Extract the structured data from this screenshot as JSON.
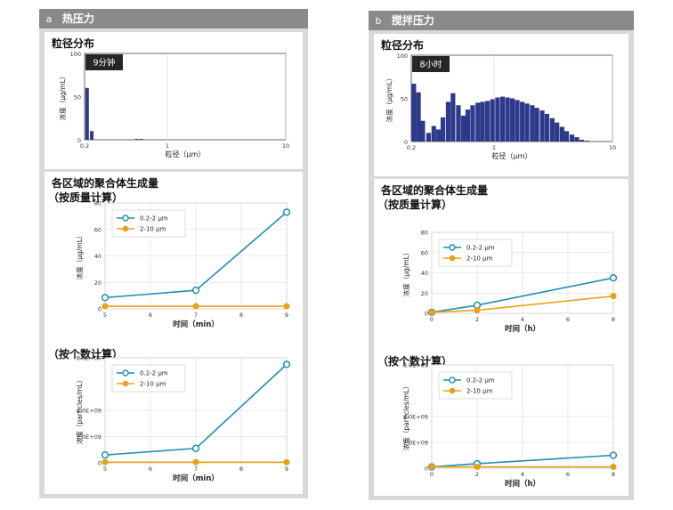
{
  "panels": [
    {
      "letter": "a",
      "title": "热压力",
      "dist": {
        "title": "粒径分布",
        "badge": "9分钟",
        "ylabel": "浓度（μg/mL）",
        "xlabel": "粒径（μm）",
        "yticks": [
          "100",
          "50",
          "0"
        ],
        "xticks": [
          {
            "v": 0.2,
            "label": "0.2"
          },
          {
            "v": 1,
            "label": "1"
          },
          {
            "v": 10,
            "label": "10"
          }
        ]
      },
      "agg": {
        "title": "各区域的聚合体生成量",
        "mass_label": "（按质量计算）",
        "count_label": "（按个数计算）"
      }
    },
    {
      "letter": "b",
      "title": "搅拌压力",
      "dist": {
        "title": "粒径分布",
        "badge": "8小时",
        "ylabel": "浓度（μg/mL）",
        "xlabel": "粒径（μm）",
        "yticks": [
          "100",
          "50",
          "0"
        ],
        "xticks": [
          {
            "v": 0.2,
            "label": "0.2"
          },
          {
            "v": 1,
            "label": "1"
          },
          {
            "v": 10,
            "label": "10"
          }
        ]
      },
      "agg": {
        "title": "各区域的聚合体生成量",
        "mass_label": "（按质量计算）",
        "count_label": "（按个数计算）"
      }
    }
  ],
  "colors": {
    "bar": "#2d3a8c",
    "s1": "#1f8fb0",
    "s2": "#e8a21a",
    "grid": "#d8d8d8"
  },
  "chart_data": [
    {
      "type": "bar",
      "panel": "a",
      "xscale": "log",
      "xlim": [
        0.2,
        10
      ],
      "ylim": [
        0,
        100
      ],
      "x": [
        0.21,
        0.23,
        0.55,
        0.6
      ],
      "values": [
        60,
        10,
        1,
        1
      ],
      "ylabel": "浓度（μg/mL）",
      "xlabel": "粒径（μm）"
    },
    {
      "type": "line",
      "panel": "a",
      "xlim": [
        5,
        9
      ],
      "ylim": [
        0,
        80
      ],
      "xticks": [
        5,
        6,
        7,
        8,
        9
      ],
      "yticks": [
        "0",
        "20",
        "40",
        "60",
        "80"
      ],
      "xlabel": "时间（min）",
      "ylabel": "浓度（μg/mL）",
      "legend": "top-left",
      "series": [
        {
          "name": "0.2-2 µm",
          "x": [
            5,
            7,
            9
          ],
          "values": [
            8.5,
            14,
            73
          ]
        },
        {
          "name": "2-10 µm",
          "x": [
            5,
            7,
            9
          ],
          "values": [
            2,
            2,
            2
          ]
        }
      ]
    },
    {
      "type": "line",
      "panel": "a",
      "xlim": [
        5,
        9
      ],
      "ylim": [
        0,
        8000000000.0
      ],
      "xticks": [
        5,
        6,
        7,
        8,
        9
      ],
      "yticks": [
        "0",
        "2.0E+09",
        "4.0E+09",
        "8.0E+09"
      ],
      "ytick_values": [
        0,
        2000000000.0,
        4000000000.0,
        8000000000.0
      ],
      "xlabel": "时间（min）",
      "ylabel": "浓度（particles/mL）",
      "legend": "top-left",
      "series": [
        {
          "name": "0.2-2 µm",
          "x": [
            5,
            7,
            9
          ],
          "values": [
            600000000.0,
            1100000000.0,
            7500000000.0
          ]
        },
        {
          "name": "2-10 µm",
          "x": [
            5,
            7,
            9
          ],
          "values": [
            50000000.0,
            50000000.0,
            50000000.0
          ]
        }
      ]
    },
    {
      "type": "bar",
      "panel": "b",
      "xscale": "log",
      "xlim": [
        0.2,
        10
      ],
      "ylim": [
        0,
        100
      ],
      "x": [
        0.21,
        0.23,
        0.25,
        0.28,
        0.31,
        0.34,
        0.37,
        0.41,
        0.45,
        0.5,
        0.55,
        0.6,
        0.66,
        0.73,
        0.8,
        0.88,
        0.97,
        1.07,
        1.18,
        1.3,
        1.43,
        1.57,
        1.73,
        1.9,
        2.1,
        2.3,
        2.55,
        2.8,
        3.1,
        3.4,
        3.75,
        4.1,
        4.55,
        5.0,
        5.5,
        6.1
      ],
      "values": [
        67,
        57,
        24,
        10,
        18,
        14,
        28,
        46,
        56,
        42,
        30,
        37,
        42,
        45,
        46,
        47,
        49,
        51,
        52,
        51,
        50,
        48,
        46,
        44,
        42,
        39,
        36,
        32,
        27,
        22,
        17,
        12,
        8,
        5,
        2,
        1
      ],
      "ylabel": "浓度（μg/mL）",
      "xlabel": "粒径（μm）"
    },
    {
      "type": "line",
      "panel": "b",
      "xlim": [
        0,
        8
      ],
      "ylim": [
        0,
        80
      ],
      "xticks": [
        0,
        2,
        4,
        6,
        8
      ],
      "yticks": [
        "0",
        "20",
        "40",
        "60",
        "80"
      ],
      "xlabel": "时间（h）",
      "ylabel": "浓度（μg/mL）",
      "legend": "top-left",
      "series": [
        {
          "name": "0.2-2 µm",
          "x": [
            0,
            2,
            8
          ],
          "values": [
            1,
            8,
            35
          ]
        },
        {
          "name": "2-10 µm",
          "x": [
            0,
            2,
            8
          ],
          "values": [
            1,
            3,
            17
          ]
        }
      ]
    },
    {
      "type": "line",
      "panel": "b",
      "xlim": [
        0,
        8
      ],
      "ylim": [
        0,
        8000000000.0
      ],
      "xticks": [
        0,
        2,
        4,
        6,
        8
      ],
      "yticks": [
        "0",
        "2.0E+09",
        "4.0E+09",
        "8.0E+09"
      ],
      "ytick_values": [
        0,
        2000000000.0,
        4000000000.0,
        8000000000.0
      ],
      "xlabel": "时间（h）",
      "ylabel": "浓度（particles/mL）",
      "legend": "top-left",
      "series": [
        {
          "name": "0.2-2 µm",
          "x": [
            0,
            2,
            8
          ],
          "values": [
            100000000.0,
            350000000.0,
            1000000000.0
          ]
        },
        {
          "name": "2-10 µm",
          "x": [
            0,
            2,
            8
          ],
          "values": [
            100000000.0,
            100000000.0,
            100000000.0
          ]
        }
      ]
    }
  ]
}
